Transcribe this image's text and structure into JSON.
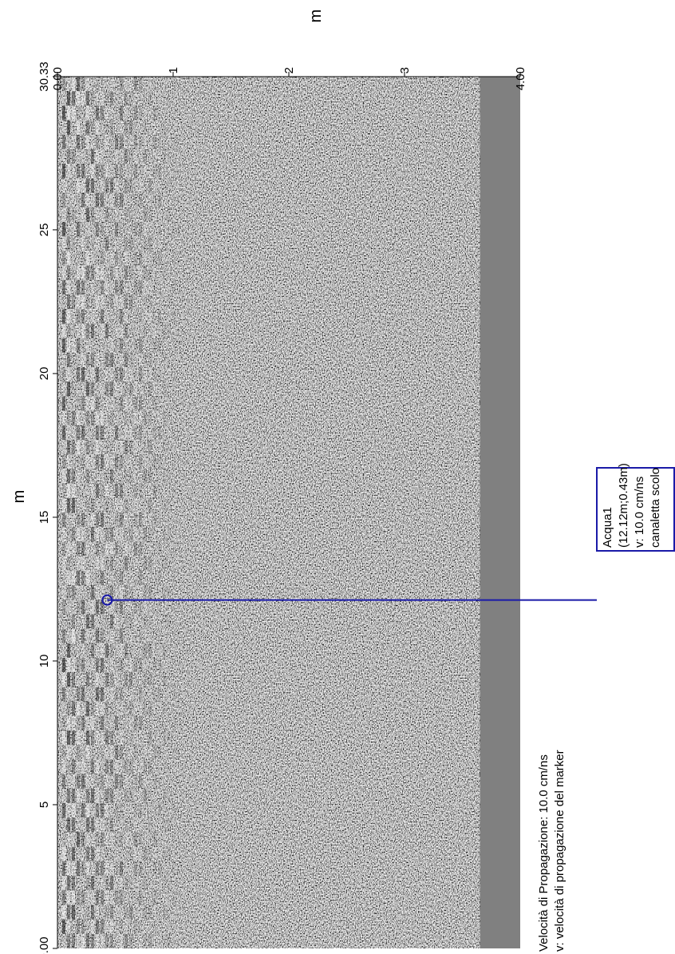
{
  "chart_data": {
    "type": "heatmap",
    "title": "",
    "x_axis": {
      "label": "m",
      "range": [
        0.0,
        30.33
      ],
      "ticks": [
        {
          "value": 0.0,
          "label": "0.00"
        },
        {
          "value": 5,
          "label": "5"
        },
        {
          "value": 10,
          "label": "10"
        },
        {
          "value": 15,
          "label": "15"
        },
        {
          "value": 20,
          "label": "20"
        },
        {
          "value": 25,
          "label": "25"
        },
        {
          "value": 30.33,
          "label": "30.33"
        }
      ]
    },
    "y_axis": {
      "label": "m",
      "range": [
        0.0,
        4.0
      ],
      "ticks": [
        {
          "value": 0.0,
          "label": "0.00"
        },
        {
          "value": 1,
          "label": "1"
        },
        {
          "value": 2,
          "label": "2"
        },
        {
          "value": 3,
          "label": "3"
        },
        {
          "value": 4.0,
          "label": "4.00"
        }
      ]
    },
    "colormap": "grayscale",
    "data_extent_depth": 3.65,
    "strong_reflection_depth_max": 1.1,
    "marker": {
      "x": 12.12,
      "y": 0.43,
      "box_lines": [
        "Acqua1",
        "(12.12m;0.43m)",
        "v: 10.0 cm/ns",
        "canaletta scolo"
      ],
      "border_color": "#1a1aa8"
    },
    "notes": [
      "Velocità di Propagazione:  10.0 cm/ns",
      "v: velocità di propagazione del marker"
    ],
    "colors": {
      "background": "#ffffff",
      "noise_band": "#808080",
      "marker_line": "#1a1aa8"
    }
  }
}
